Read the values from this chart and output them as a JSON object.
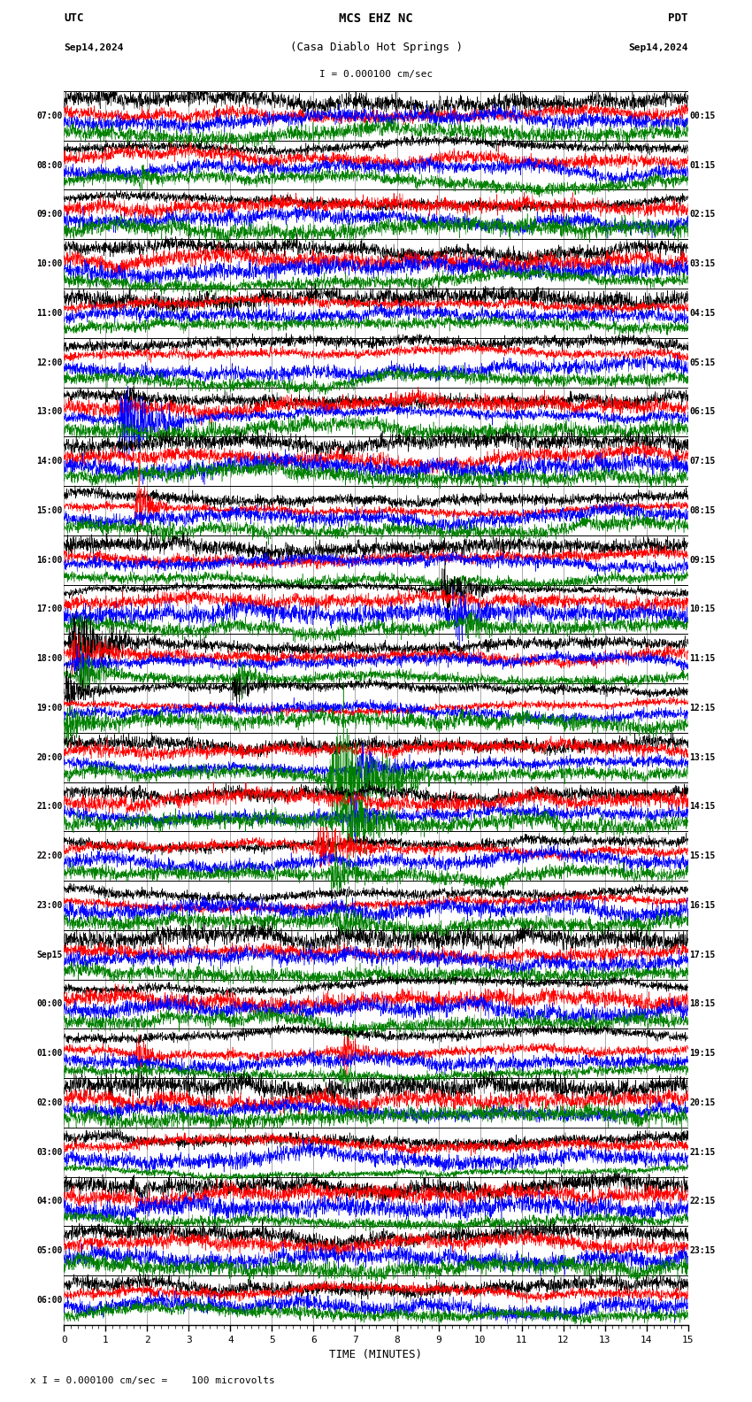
{
  "title_line1": "MCS EHZ NC",
  "title_line2": "(Casa Diablo Hot Springs )",
  "scale_text": "I = 0.000100 cm/sec",
  "utc_label": "UTC",
  "pdt_label": "PDT",
  "date_left": "Sep14,2024",
  "date_right": "Sep14,2024",
  "xlabel": "TIME (MINUTES)",
  "footer_text": "x I = 0.000100 cm/sec =    100 microvolts",
  "left_times": [
    "07:00",
    "08:00",
    "09:00",
    "10:00",
    "11:00",
    "12:00",
    "13:00",
    "14:00",
    "15:00",
    "16:00",
    "17:00",
    "18:00",
    "19:00",
    "20:00",
    "21:00",
    "22:00",
    "23:00",
    "Sep15",
    "00:00",
    "01:00",
    "02:00",
    "03:00",
    "04:00",
    "05:00",
    "06:00"
  ],
  "right_times": [
    "00:15",
    "01:15",
    "02:15",
    "03:15",
    "04:15",
    "05:15",
    "06:15",
    "07:15",
    "08:15",
    "09:15",
    "10:15",
    "11:15",
    "12:15",
    "13:15",
    "14:15",
    "15:15",
    "16:15",
    "17:15",
    "18:15",
    "19:15",
    "20:15",
    "21:15",
    "22:15",
    "23:15"
  ],
  "colors": [
    "black",
    "red",
    "blue",
    "green"
  ],
  "bg_color": "white",
  "n_rows": 25,
  "n_traces_per_row": 4,
  "x_min": 0,
  "x_max": 15,
  "x_ticks": [
    0,
    1,
    2,
    3,
    4,
    5,
    6,
    7,
    8,
    9,
    10,
    11,
    12,
    13,
    14,
    15
  ],
  "events": [
    {
      "row": 1,
      "ci": 3,
      "ts": 1.8,
      "te": 2.3,
      "amp": 4.0
    },
    {
      "row": 6,
      "ci": 2,
      "ts": 1.3,
      "te": 2.9,
      "amp": 18.0
    },
    {
      "row": 6,
      "ci": 0,
      "ts": 1.5,
      "te": 2.2,
      "amp": 5.0
    },
    {
      "row": 8,
      "ci": 1,
      "ts": 1.7,
      "te": 2.5,
      "amp": 14.0
    },
    {
      "row": 8,
      "ci": 3,
      "ts": 2.3,
      "te": 3.0,
      "amp": 6.0
    },
    {
      "row": 10,
      "ci": 0,
      "ts": 9.0,
      "te": 10.3,
      "amp": 16.0
    },
    {
      "row": 10,
      "ci": 2,
      "ts": 9.3,
      "te": 10.2,
      "amp": 10.0
    },
    {
      "row": 10,
      "ci": 3,
      "ts": 9.6,
      "te": 10.5,
      "amp": 7.0
    },
    {
      "row": 11,
      "ci": 0,
      "ts": 0.1,
      "te": 1.8,
      "amp": 18.0
    },
    {
      "row": 11,
      "ci": 1,
      "ts": 0.1,
      "te": 1.5,
      "amp": 10.0
    },
    {
      "row": 11,
      "ci": 2,
      "ts": 0.2,
      "te": 1.3,
      "amp": 8.0
    },
    {
      "row": 11,
      "ci": 3,
      "ts": 0.3,
      "te": 1.5,
      "amp": 12.0
    },
    {
      "row": 11,
      "ci": 3,
      "ts": 4.1,
      "te": 5.0,
      "amp": 9.0
    },
    {
      "row": 12,
      "ci": 0,
      "ts": 0.0,
      "te": 1.0,
      "amp": 12.0
    },
    {
      "row": 12,
      "ci": 3,
      "ts": 0.0,
      "te": 0.8,
      "amp": 8.0
    },
    {
      "row": 12,
      "ci": 0,
      "ts": 4.0,
      "te": 5.0,
      "amp": 8.0
    },
    {
      "row": 13,
      "ci": 3,
      "ts": 6.3,
      "te": 8.8,
      "amp": 22.0
    },
    {
      "row": 13,
      "ci": 2,
      "ts": 7.0,
      "te": 8.5,
      "amp": 8.0
    },
    {
      "row": 14,
      "ci": 3,
      "ts": 6.6,
      "te": 8.3,
      "amp": 14.0
    },
    {
      "row": 14,
      "ci": 2,
      "ts": 6.8,
      "te": 8.0,
      "amp": 7.0
    },
    {
      "row": 15,
      "ci": 1,
      "ts": 6.0,
      "te": 7.8,
      "amp": 10.0
    },
    {
      "row": 15,
      "ci": 3,
      "ts": 6.3,
      "te": 8.0,
      "amp": 7.0
    },
    {
      "row": 16,
      "ci": 3,
      "ts": 6.5,
      "te": 7.8,
      "amp": 7.0
    },
    {
      "row": 19,
      "ci": 1,
      "ts": 1.7,
      "te": 2.4,
      "amp": 10.0
    },
    {
      "row": 19,
      "ci": 1,
      "ts": 6.6,
      "te": 7.5,
      "amp": 10.0
    },
    {
      "row": 19,
      "ci": 3,
      "ts": 1.7,
      "te": 2.4,
      "amp": 5.0
    },
    {
      "row": 19,
      "ci": 3,
      "ts": 6.6,
      "te": 7.4,
      "amp": 5.0
    }
  ]
}
